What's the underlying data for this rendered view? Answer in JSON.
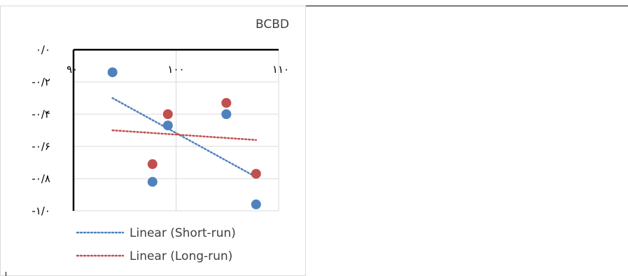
{
  "chart_data": {
    "type": "scatter",
    "title": "BCBD",
    "x_ticks": [
      {
        "value": 90,
        "label": "۹۰"
      },
      {
        "value": 100,
        "label": "۱۰۰"
      },
      {
        "value": 110,
        "label": "۱۱۰"
      }
    ],
    "y_ticks": [
      {
        "value": 0,
        "label": "۰/۰"
      },
      {
        "value": -0.2,
        "label": "-۰/۲"
      },
      {
        "value": -0.4,
        "label": "-۰/۴"
      },
      {
        "value": -0.6,
        "label": "-۰/۶"
      },
      {
        "value": -0.8,
        "label": "-۰/۸"
      },
      {
        "value": -1.0,
        "label": "-۱/۰"
      }
    ],
    "xlim": [
      90,
      110
    ],
    "ylim": [
      -1.0,
      0.0
    ],
    "grid": true,
    "series": [
      {
        "color": "#4f81bd",
        "points": [
          {
            "x": 93.8,
            "y": -0.14
          },
          {
            "x": 97.7,
            "y": -0.82
          },
          {
            "x": 99.2,
            "y": -0.47
          },
          {
            "x": 104.9,
            "y": -0.4
          },
          {
            "x": 107.8,
            "y": -0.96
          }
        ]
      },
      {
        "color": "#c0504d",
        "points": [
          {
            "x": 97.7,
            "y": -0.71
          },
          {
            "x": 99.2,
            "y": -0.4
          },
          {
            "x": 104.9,
            "y": -0.33
          },
          {
            "x": 107.8,
            "y": -0.77
          }
        ]
      }
    ],
    "trendlines": [
      {
        "name": "Linear (Short-run)",
        "color": "#4f81bd",
        "x": [
          93.8,
          107.8
        ],
        "y": [
          -0.3,
          -0.79
        ]
      },
      {
        "name": "Linear (Long-run)",
        "color": "#c0504d",
        "x": [
          93.8,
          107.8
        ],
        "y": [
          -0.5,
          -0.56
        ]
      }
    ],
    "legend_position": "bottom-left"
  }
}
